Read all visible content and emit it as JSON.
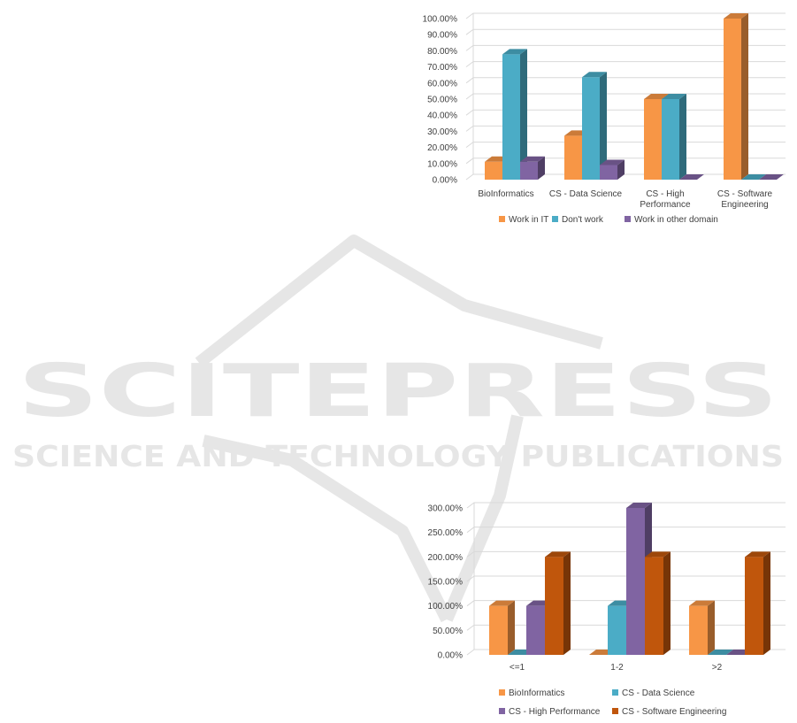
{
  "watermark": {
    "title": "SCITEPRESS",
    "subtitle": "SCIENCE AND TECHNOLOGY PUBLICATIONS",
    "color": "#e6e6e6"
  },
  "chart_data": [
    {
      "type": "bar",
      "title": "",
      "xlabel": "",
      "ylabel": "",
      "ylim": [
        0,
        100
      ],
      "y_ticks": [
        "0.00%",
        "10.00%",
        "20.00%",
        "30.00%",
        "40.00%",
        "50.00%",
        "60.00%",
        "70.00%",
        "80.00%",
        "90.00%",
        "100.00%"
      ],
      "categories": [
        [
          "BioInformatics"
        ],
        [
          "CS - Data Science"
        ],
        [
          "CS - High",
          "Performance"
        ],
        [
          "CS - Software",
          "Engineering"
        ]
      ],
      "series": [
        {
          "name": "Work in IT",
          "color": "#f79646",
          "values": [
            11.1,
            27.3,
            50.0,
            100.0
          ]
        },
        {
          "name": "Don't work",
          "color": "#4bacc6",
          "values": [
            77.8,
            63.6,
            50.0,
            0.0
          ]
        },
        {
          "name": "Work in other domain",
          "color": "#8064a2",
          "values": [
            11.1,
            9.1,
            0.0,
            0.0
          ]
        }
      ],
      "grid": true,
      "legend": "bottom"
    },
    {
      "type": "bar",
      "title": "",
      "xlabel": "",
      "ylabel": "",
      "ylim": [
        0,
        300
      ],
      "y_ticks": [
        "0.00%",
        "50.00%",
        "100.00%",
        "150.00%",
        "200.00%",
        "250.00%",
        "300.00%"
      ],
      "categories": [
        [
          "<=1"
        ],
        [
          "1-2"
        ],
        [
          ">2"
        ]
      ],
      "series": [
        {
          "name": "BioInformatics",
          "color": "#f79646",
          "values": [
            100,
            0,
            100
          ]
        },
        {
          "name": "CS - Data Science",
          "color": "#4bacc6",
          "values": [
            0,
            100,
            0
          ]
        },
        {
          "name": "CS - High Performance",
          "color": "#8064a2",
          "values": [
            100,
            300,
            0
          ]
        },
        {
          "name": "CS - Software Engineering",
          "color": "#c0560c",
          "values": [
            200,
            200,
            200
          ]
        }
      ],
      "grid": true,
      "legend": "bottom"
    }
  ]
}
